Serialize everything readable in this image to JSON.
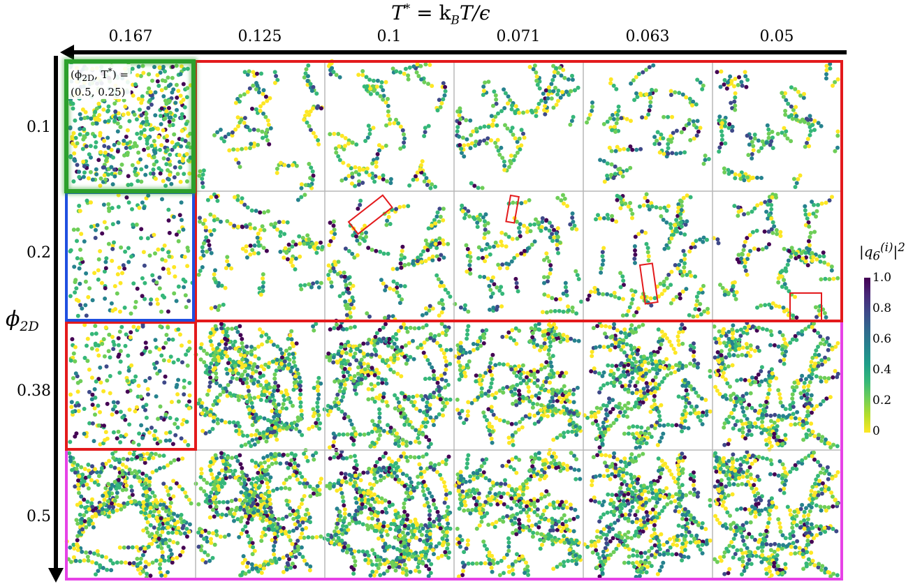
{
  "axis_title": {
    "lhs": "T",
    "lhs_sup": "*",
    "rhs_pre": " = k",
    "rhs_sub": "B",
    "rhs_post": "T/ϵ"
  },
  "temperatures": [
    "0.167",
    "0.125",
    "0.1",
    "0.071",
    "0.063",
    "0.05"
  ],
  "densities": [
    "0.1",
    "0.2",
    "0.38",
    "0.5"
  ],
  "y_axis_label": {
    "main": "ϕ",
    "sub": "2D"
  },
  "annotation": {
    "line1": "(ϕ",
    "line1_sub": "2D",
    "line1_rest": ", T",
    "line1_sup": "*",
    "line1_end": ") =",
    "line2": "(0.5, 0.25)"
  },
  "colorbar": {
    "title": "|q",
    "title_sub": "6",
    "title_sup": "(i)",
    "title_end": "|",
    "title_power": "2",
    "ticks": [
      "1.0",
      "0.8",
      "0.6",
      "0.4",
      "0.2",
      "0"
    ],
    "colors": [
      "#fde725",
      "#b5de2b",
      "#6ece58",
      "#35b779",
      "#1f9e89",
      "#26828e",
      "#31688e",
      "#3e4989",
      "#482878",
      "#440154"
    ]
  },
  "region_colors": {
    "green": "#2ca02c",
    "blue": "#1f4fe0",
    "red": "#e31a1c",
    "magenta": "#e642e6"
  }
}
